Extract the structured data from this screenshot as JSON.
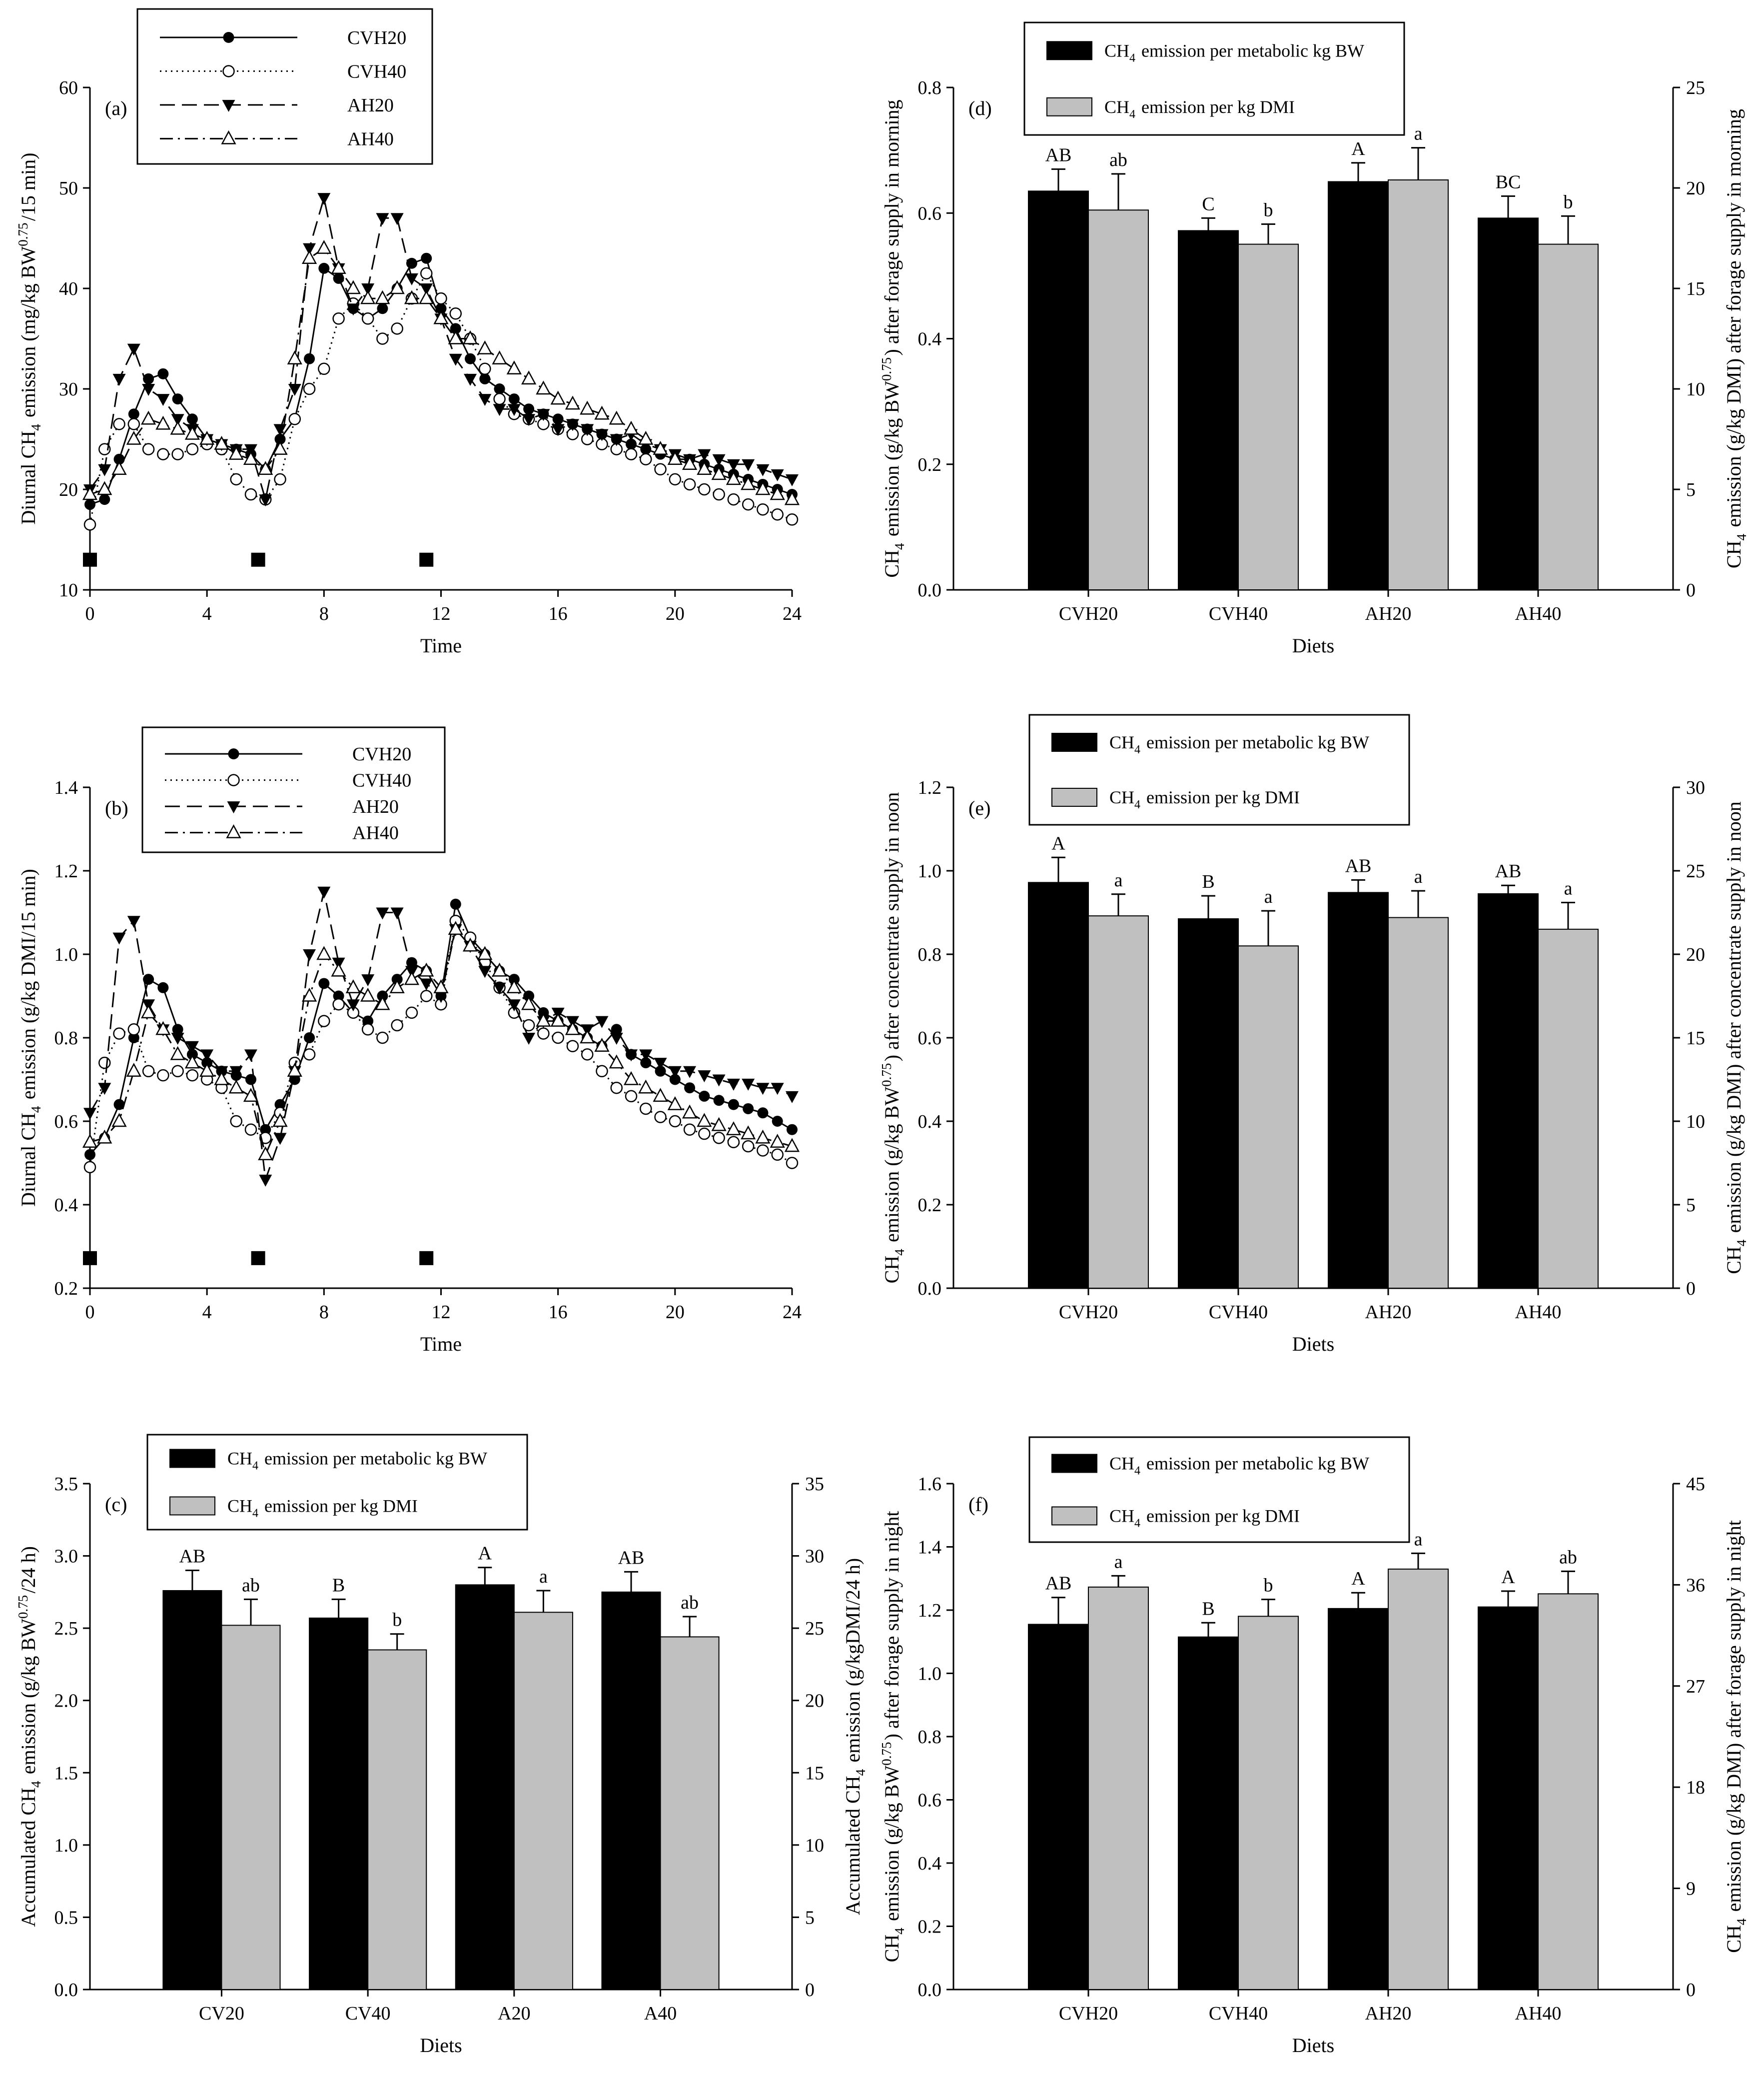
{
  "chart_data": [
    {
      "id": "a",
      "type": "line",
      "panel_label": "(a)",
      "xlabel": "Time",
      "ylabel_main": "Diurnal CH",
      "ylabel_sub": "4",
      "ylabel_rest": " emission (mg/kg BW",
      "ylabel_sup": "0.75",
      "ylabel_end": "/15 min)",
      "xlim": [
        0,
        24
      ],
      "ylim": [
        10,
        60
      ],
      "xticks": [
        0,
        4,
        8,
        12,
        16,
        20,
        24
      ],
      "yticks": [
        10,
        20,
        30,
        40,
        50,
        60
      ],
      "feeding_times": [
        0,
        5.75,
        11.5
      ],
      "x": [
        0,
        0.5,
        1,
        1.5,
        2,
        2.5,
        3,
        3.5,
        4,
        4.5,
        5,
        5.5,
        6,
        6.5,
        7,
        7.5,
        8,
        8.5,
        9,
        9.5,
        10,
        10.5,
        11,
        11.5,
        12,
        12.5,
        13,
        13.5,
        14,
        14.5,
        15,
        15.5,
        16,
        16.5,
        17,
        17.5,
        18,
        18.5,
        19,
        19.5,
        20,
        20.5,
        21,
        21.5,
        22,
        22.5,
        23,
        23.5,
        24
      ],
      "series": [
        {
          "name": "CVH20",
          "label": "CVH20",
          "marker": "filled-circle",
          "dash": "solid",
          "values": [
            18.5,
            19,
            23,
            27.5,
            31,
            31.5,
            29,
            27,
            25,
            24.5,
            24,
            23.5,
            22,
            25,
            27,
            33,
            42,
            41,
            38,
            37,
            38,
            40,
            42.5,
            43,
            38,
            36,
            33,
            31,
            30,
            29,
            28,
            27.5,
            27,
            26.5,
            26,
            25.5,
            25,
            24.5,
            24,
            23.5,
            23,
            23,
            22.5,
            22,
            21.5,
            21,
            20.5,
            20,
            19.5
          ]
        },
        {
          "name": "CVH40",
          "label": "CVH40",
          "marker": "open-circle",
          "dash": "dotted",
          "values": [
            16.5,
            24,
            26.5,
            26.5,
            24,
            23.5,
            23.5,
            24,
            24.5,
            24,
            21,
            19.5,
            19,
            21,
            27,
            30,
            32,
            37,
            38.5,
            37,
            35,
            36,
            39,
            41.5,
            39,
            37.5,
            35,
            32,
            29,
            27.5,
            27,
            26.5,
            26,
            25.5,
            25,
            24.5,
            24,
            23.5,
            23,
            22,
            21,
            20.5,
            20,
            19.5,
            19,
            18.5,
            18,
            17.5,
            17
          ]
        },
        {
          "name": "AH20",
          "label": "AH20",
          "marker": "filled-triangle-down",
          "dash": "dashed",
          "values": [
            20,
            22,
            31,
            34,
            30,
            29,
            27,
            26,
            25,
            24.5,
            24,
            24,
            19,
            26,
            30,
            44,
            49,
            42,
            38,
            40,
            47,
            47,
            41,
            40,
            37,
            33,
            31,
            29,
            28,
            28,
            27,
            27.5,
            26,
            26.5,
            26,
            25.5,
            25,
            25.5,
            24.5,
            24,
            23.5,
            23,
            23.5,
            23,
            22.5,
            22.5,
            22,
            21.5,
            21
          ]
        },
        {
          "name": "AH40",
          "label": "AH40",
          "marker": "open-triangle-up",
          "dash": "dashdot",
          "values": [
            19.5,
            20,
            22,
            25,
            27,
            26.5,
            26,
            25.5,
            25,
            24.5,
            23.5,
            23,
            22,
            24,
            33,
            43,
            44,
            42,
            40,
            39,
            39,
            40,
            39,
            39,
            37,
            35,
            35,
            34,
            33,
            32,
            31,
            30,
            29,
            28.5,
            28,
            27.5,
            27,
            26,
            25,
            24,
            23,
            22.5,
            22,
            21.5,
            21,
            20.5,
            20,
            19.5,
            19
          ]
        }
      ]
    },
    {
      "id": "b",
      "type": "line",
      "panel_label": "(b)",
      "xlabel": "Time",
      "ylabel_main": "Diurnal CH",
      "ylabel_sub": "4",
      "ylabel_rest": " emission (g/kg DMI/15 min)",
      "ylabel_sup": "",
      "ylabel_end": "",
      "xlim": [
        0,
        24
      ],
      "ylim": [
        0.2,
        1.4
      ],
      "xticks": [
        0,
        4,
        8,
        12,
        16,
        20,
        24
      ],
      "yticks": [
        0.2,
        0.4,
        0.6,
        0.8,
        1.0,
        1.2,
        1.4
      ],
      "feeding_times": [
        0,
        5.75,
        11.5
      ],
      "x": [
        0,
        0.5,
        1,
        1.5,
        2,
        2.5,
        3,
        3.5,
        4,
        4.5,
        5,
        5.5,
        6,
        6.5,
        7,
        7.5,
        8,
        8.5,
        9,
        9.5,
        10,
        10.5,
        11,
        11.5,
        12,
        12.5,
        13,
        13.5,
        14,
        14.5,
        15,
        15.5,
        16,
        16.5,
        17,
        17.5,
        18,
        18.5,
        19,
        19.5,
        20,
        20.5,
        21,
        21.5,
        22,
        22.5,
        23,
        23.5,
        24
      ],
      "series": [
        {
          "name": "CVH20",
          "label": "CVH20",
          "marker": "filled-circle",
          "dash": "solid",
          "values": [
            0.52,
            0.56,
            0.64,
            0.8,
            0.94,
            0.92,
            0.82,
            0.76,
            0.74,
            0.72,
            0.71,
            0.7,
            0.58,
            0.64,
            0.7,
            0.8,
            0.93,
            0.9,
            0.86,
            0.84,
            0.9,
            0.94,
            0.98,
            0.96,
            0.9,
            1.12,
            1.04,
            1.0,
            0.96,
            0.94,
            0.9,
            0.86,
            0.84,
            0.82,
            0.8,
            0.78,
            0.82,
            0.76,
            0.74,
            0.72,
            0.7,
            0.68,
            0.66,
            0.65,
            0.64,
            0.63,
            0.62,
            0.6,
            0.58
          ]
        },
        {
          "name": "CVH40",
          "label": "CVH40",
          "marker": "open-circle",
          "dash": "dotted",
          "values": [
            0.49,
            0.74,
            0.81,
            0.82,
            0.72,
            0.71,
            0.72,
            0.71,
            0.7,
            0.68,
            0.6,
            0.58,
            0.56,
            0.62,
            0.74,
            0.76,
            0.84,
            0.88,
            0.86,
            0.82,
            0.8,
            0.83,
            0.86,
            0.9,
            0.88,
            1.08,
            1.04,
            0.98,
            0.92,
            0.86,
            0.83,
            0.81,
            0.8,
            0.78,
            0.76,
            0.72,
            0.68,
            0.66,
            0.63,
            0.61,
            0.6,
            0.58,
            0.57,
            0.56,
            0.55,
            0.54,
            0.53,
            0.52,
            0.5
          ]
        },
        {
          "name": "AH20",
          "label": "AH20",
          "marker": "filled-triangle-down",
          "dash": "dashed",
          "values": [
            0.62,
            0.68,
            1.04,
            1.08,
            0.88,
            0.82,
            0.8,
            0.78,
            0.76,
            0.72,
            0.72,
            0.76,
            0.46,
            0.56,
            0.72,
            1.0,
            1.15,
            0.98,
            0.88,
            0.94,
            1.1,
            1.1,
            0.96,
            0.93,
            0.9,
            1.06,
            1.02,
            0.96,
            0.92,
            0.88,
            0.8,
            0.84,
            0.86,
            0.84,
            0.82,
            0.84,
            0.8,
            0.76,
            0.76,
            0.74,
            0.72,
            0.72,
            0.71,
            0.7,
            0.69,
            0.69,
            0.68,
            0.68,
            0.66
          ]
        },
        {
          "name": "AH40",
          "label": "AH40",
          "marker": "open-triangle-up",
          "dash": "dashdot",
          "values": [
            0.55,
            0.56,
            0.6,
            0.72,
            0.86,
            0.82,
            0.76,
            0.74,
            0.72,
            0.7,
            0.68,
            0.66,
            0.52,
            0.6,
            0.72,
            0.9,
            1.0,
            0.96,
            0.92,
            0.9,
            0.88,
            0.92,
            0.94,
            0.96,
            0.92,
            1.06,
            1.02,
            1.0,
            0.96,
            0.92,
            0.88,
            0.84,
            0.84,
            0.82,
            0.8,
            0.78,
            0.74,
            0.7,
            0.68,
            0.66,
            0.64,
            0.62,
            0.6,
            0.59,
            0.58,
            0.57,
            0.56,
            0.55,
            0.54
          ]
        }
      ]
    },
    {
      "id": "c",
      "type": "bar",
      "panel_label": "(c)",
      "xlabel": "Diets",
      "categories": [
        "CV20",
        "CV40",
        "A20",
        "A40"
      ],
      "ylabel_left_main": "Accumulated CH",
      "ylabel_left_sub": "4",
      "ylabel_left_rest": " emission (g/kg BW",
      "ylabel_left_sup": "0.75",
      "ylabel_left_end": "/24 h)",
      "ylabel_right_main": "Accumulated CH",
      "ylabel_right_sub": "4",
      "ylabel_right_rest": " emission (g/kgDMI/24 h)",
      "ylabel_right_sup": "",
      "ylabel_right_end": "",
      "ylim_left": [
        0,
        3.5
      ],
      "ylim_right": [
        0,
        35
      ],
      "yticks_left": [
        "0.0",
        "0.5",
        "1.0",
        "1.5",
        "2.0",
        "2.5",
        "3.0",
        "3.5"
      ],
      "yticks_right": [
        "0",
        "5",
        "10",
        "15",
        "20",
        "25",
        "30",
        "35"
      ],
      "legend_bw_main": "CH",
      "legend_bw_sub": "4",
      "legend_bw_rest": " emission per metabolic kg BW",
      "legend_dmi_main": "CH",
      "legend_dmi_sub": "4",
      "legend_dmi_rest": " emission per kg DMI",
      "series": [
        {
          "name": "per metabolic kg BW",
          "axis": "left",
          "values": [
            2.76,
            2.57,
            2.8,
            2.75
          ],
          "errors": [
            0.14,
            0.13,
            0.12,
            0.14
          ],
          "letters": [
            "AB",
            "B",
            "A",
            "AB"
          ]
        },
        {
          "name": "per kg DMI",
          "axis": "right",
          "values": [
            25.2,
            23.5,
            26.1,
            24.4
          ],
          "errors": [
            1.8,
            1.1,
            1.5,
            1.4
          ],
          "letters": [
            "ab",
            "b",
            "a",
            "ab"
          ]
        }
      ]
    },
    {
      "id": "d",
      "type": "bar",
      "panel_label": "(d)",
      "xlabel": "Diets",
      "categories": [
        "CVH20",
        "CVH40",
        "AH20",
        "AH40"
      ],
      "ylabel_left_main": "CH",
      "ylabel_left_sub": "4",
      "ylabel_left_rest": " emission (g/kg BW",
      "ylabel_left_sup": "0.75",
      "ylabel_left_end": ") after forage supply in morning",
      "ylabel_right_main": "CH",
      "ylabel_right_sub": "4",
      "ylabel_right_rest": " emission (g/kg DMI) after forage supply in morning",
      "ylabel_right_sup": "",
      "ylabel_right_end": "",
      "ylim_left": [
        0,
        0.8
      ],
      "ylim_right": [
        0,
        25
      ],
      "yticks_left": [
        "0.0",
        "0.2",
        "0.4",
        "0.6",
        "0.8"
      ],
      "yticks_right": [
        "0",
        "5",
        "10",
        "15",
        "20",
        "25"
      ],
      "legend_bw_main": "CH",
      "legend_bw_sub": "4",
      "legend_bw_rest": " emission per metabolic kg BW",
      "legend_dmi_main": "CH",
      "legend_dmi_sub": "4",
      "legend_dmi_rest": " emission per kg DMI",
      "series": [
        {
          "name": "per metabolic kg BW",
          "axis": "left",
          "values": [
            0.635,
            0.572,
            0.65,
            0.592
          ],
          "errors": [
            0.035,
            0.02,
            0.03,
            0.035
          ],
          "letters": [
            "AB",
            "C",
            "A",
            "BC"
          ]
        },
        {
          "name": "per kg DMI",
          "axis": "right",
          "values": [
            18.9,
            17.2,
            20.4,
            17.2
          ],
          "errors": [
            1.8,
            1.0,
            1.6,
            1.4
          ],
          "letters": [
            "ab",
            "b",
            "a",
            "b"
          ]
        }
      ]
    },
    {
      "id": "e",
      "type": "bar",
      "panel_label": "(e)",
      "xlabel": "Diets",
      "categories": [
        "CVH20",
        "CVH40",
        "AH20",
        "AH40"
      ],
      "ylabel_left_main": "CH",
      "ylabel_left_sub": "4",
      "ylabel_left_rest": " emission (g/kg BW",
      "ylabel_left_sup": "0.75",
      "ylabel_left_end": ") after concentrate supply in noon",
      "ylabel_right_main": "CH",
      "ylabel_right_sub": "4",
      "ylabel_right_rest": " emission (g/kg DMI) after concentrate supply in noon",
      "ylabel_right_sup": "",
      "ylabel_right_end": "",
      "ylim_left": [
        0,
        1.2
      ],
      "ylim_right": [
        0,
        30
      ],
      "yticks_left": [
        "0.0",
        "0.2",
        "0.4",
        "0.6",
        "0.8",
        "1.0",
        "1.2"
      ],
      "yticks_right": [
        "0",
        "5",
        "10",
        "15",
        "20",
        "25",
        "30"
      ],
      "legend_bw_main": "CH",
      "legend_bw_sub": "4",
      "legend_bw_rest": " emission per metabolic kg BW",
      "legend_dmi_main": "CH",
      "legend_dmi_sub": "4",
      "legend_dmi_rest": " emission per kg DMI",
      "series": [
        {
          "name": "per metabolic kg BW",
          "axis": "left",
          "values": [
            0.972,
            0.885,
            0.948,
            0.945
          ],
          "errors": [
            0.06,
            0.055,
            0.03,
            0.02
          ],
          "letters": [
            "A",
            "B",
            "AB",
            "AB"
          ]
        },
        {
          "name": "per kg DMI",
          "axis": "right",
          "values": [
            22.3,
            20.5,
            22.2,
            21.5
          ],
          "errors": [
            1.3,
            2.1,
            1.6,
            1.6
          ],
          "letters": [
            "a",
            "a",
            "a",
            "a"
          ]
        }
      ]
    },
    {
      "id": "f",
      "type": "bar",
      "panel_label": "(f)",
      "xlabel": "Diets",
      "categories": [
        "CVH20",
        "CVH40",
        "AH20",
        "AH40"
      ],
      "ylabel_left_main": "CH",
      "ylabel_left_sub": "4",
      "ylabel_left_rest": " emission (g/kg BW",
      "ylabel_left_sup": "0.75",
      "ylabel_left_end": ") after forage supply in night",
      "ylabel_right_main": "CH",
      "ylabel_right_sub": "4",
      "ylabel_right_rest": " emission (g/kg DMI) after forage supply in night",
      "ylabel_right_sup": "",
      "ylabel_right_end": "",
      "ylim_left": [
        0,
        1.6
      ],
      "ylim_right": [
        0,
        45
      ],
      "yticks_left": [
        "0.0",
        "0.2",
        "0.4",
        "0.6",
        "0.8",
        "1.0",
        "1.2",
        "1.4",
        "1.6"
      ],
      "yticks_right": [
        "0",
        "9",
        "18",
        "27",
        "36",
        "45"
      ],
      "legend_bw_main": "CH",
      "legend_bw_sub": "4",
      "legend_bw_rest": " emission per metabolic kg BW",
      "legend_dmi_main": "CH",
      "legend_dmi_sub": "4",
      "legend_dmi_rest": " emission per kg DMI",
      "series": [
        {
          "name": "per metabolic kg BW",
          "axis": "left",
          "values": [
            1.155,
            1.115,
            1.205,
            1.21
          ],
          "errors": [
            0.085,
            0.045,
            0.05,
            0.05
          ],
          "letters": [
            "AB",
            "B",
            "A",
            "A"
          ]
        },
        {
          "name": "per kg DMI",
          "axis": "right",
          "values": [
            35.8,
            33.2,
            37.4,
            35.2
          ],
          "errors": [
            1.0,
            1.5,
            1.4,
            2.0
          ],
          "letters": [
            "a",
            "b",
            "a",
            "ab"
          ]
        }
      ]
    }
  ]
}
